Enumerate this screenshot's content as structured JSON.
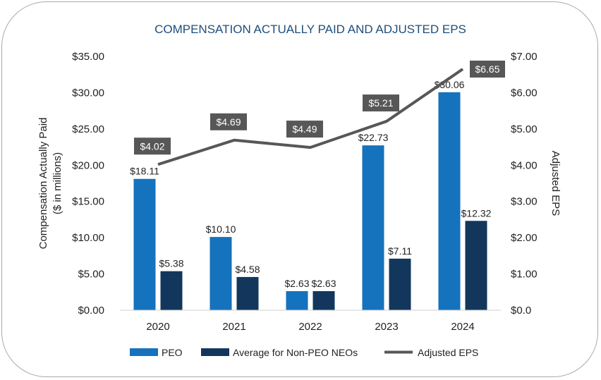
{
  "chart_data": {
    "type": "bar",
    "title": "COMPENSATION ACTUALLY PAID AND ADJUSTED EPS",
    "categories": [
      "2020",
      "2021",
      "2022",
      "2023",
      "2024"
    ],
    "ylabel": "Compensation Actually Paid",
    "ylabel_sub": "($ in millions)",
    "y2label": "Adjusted EPS",
    "ylim": [
      0,
      35
    ],
    "y2lim": [
      0,
      7
    ],
    "yticks": [
      "$0.00",
      "$5.00",
      "$10.00",
      "$15.00",
      "$20.00",
      "$25.00",
      "$30.00",
      "$35.00"
    ],
    "y2ticks": [
      "$0.0",
      "$1.00",
      "$2.00",
      "$3.00",
      "$4.00",
      "$5.00",
      "$6.00",
      "$7.00"
    ],
    "series": [
      {
        "name": "PEO",
        "type": "bar",
        "color": "#1572bd",
        "values": [
          18.11,
          10.1,
          2.63,
          22.73,
          30.06
        ],
        "labels": [
          "$18.11",
          "$10.10",
          "$2.63",
          "$22.73",
          "$30.06"
        ]
      },
      {
        "name": "Average for Non-PEO NEOs",
        "type": "bar",
        "color": "#13375c",
        "values": [
          5.38,
          4.58,
          2.63,
          7.11,
          12.32
        ],
        "labels": [
          "$5.38",
          "$4.58",
          "$2.63",
          "$7.11",
          "$12.32"
        ]
      },
      {
        "name": "Adjusted EPS",
        "type": "line",
        "axis": "right",
        "color": "#575757",
        "values": [
          4.02,
          4.69,
          4.49,
          5.21,
          6.65
        ],
        "labels": [
          "$4.02",
          "$4.69",
          "$4.49",
          "$5.21",
          "$6.65"
        ]
      }
    ],
    "legend_position": "bottom",
    "grid": false
  }
}
